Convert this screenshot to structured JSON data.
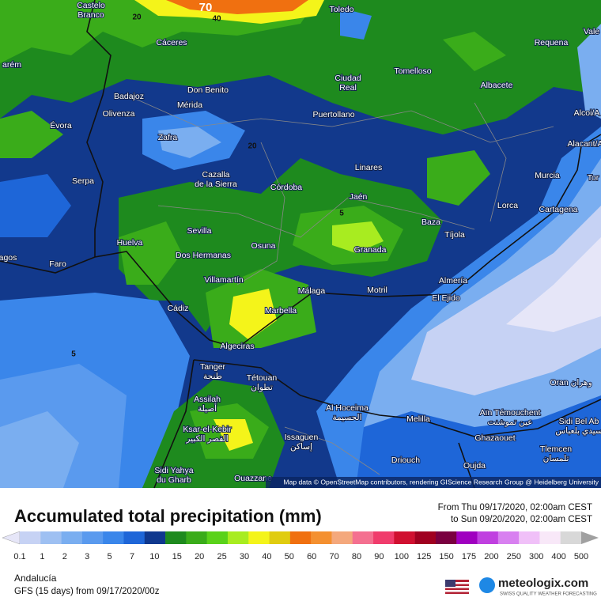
{
  "map": {
    "cities": [
      {
        "label": "Castelo",
        "label2": "Branco"
      },
      {
        "label": "Toledo"
      },
      {
        "label": "Cáceres"
      },
      {
        "label": "Requena"
      },
      {
        "label": "arém"
      },
      {
        "label": "Tomelloso"
      },
      {
        "label": "Ciudad",
        "label2": "Real"
      },
      {
        "label": "Albacete"
      },
      {
        "label": "Don Benito"
      },
      {
        "label": "Badajoz"
      },
      {
        "label": "Mérida"
      },
      {
        "label": "Puertollano"
      },
      {
        "label": "Alcoi/A"
      },
      {
        "label": "Évora"
      },
      {
        "label": "Olivenza"
      },
      {
        "label": "Zafra"
      },
      {
        "label": "Alacant/A"
      },
      {
        "label": "Linares"
      },
      {
        "label": "Cazalla",
        "label2": "de la Sierra"
      },
      {
        "label": "Murcia"
      },
      {
        "label": "Tor"
      },
      {
        "label": "Serpa"
      },
      {
        "label": "Córdoba"
      },
      {
        "label": "Jaén"
      },
      {
        "label": "Lorca"
      },
      {
        "label": "Cartagena"
      },
      {
        "label": "Baza"
      },
      {
        "label": "Sevilla"
      },
      {
        "label": "Huelva"
      },
      {
        "label": "Tíjola"
      },
      {
        "label": "Osuna"
      },
      {
        "label": "Granada"
      },
      {
        "label": "Dos Hermanas"
      },
      {
        "label": "agos"
      },
      {
        "label": "Faro"
      },
      {
        "label": "Almería"
      },
      {
        "label": "Villamartín"
      },
      {
        "label": "Málaga"
      },
      {
        "label": "Motril"
      },
      {
        "label": "El Ejido"
      },
      {
        "label": "Marbella"
      },
      {
        "label": "Cádiz"
      },
      {
        "label": "Algeciras"
      },
      {
        "label": "Tanger",
        "label2": "طنجة"
      },
      {
        "label": "Tétouan",
        "label2": "تطوان"
      },
      {
        "label": "Assilah",
        "label2": "أصيلة"
      },
      {
        "label": "Al Hoceima",
        "label2": "الحسيمة"
      },
      {
        "label": "Oran وهران"
      },
      {
        "label": "Aïn Témouchent",
        "label2": "عين تموشنت"
      },
      {
        "label": "Sidi Bel Ab",
        "label2": "سيدي بلعباس"
      },
      {
        "label": "Melilla"
      },
      {
        "label": "Ksar-el-Kebir",
        "label2": "القصر الكبير"
      },
      {
        "label": "Issaguen",
        "label2": "إساكن"
      },
      {
        "label": "Ghazaouet"
      },
      {
        "label": "Tlemcen",
        "label2": "تلمسان"
      },
      {
        "label": "Sidi Yahya",
        "label2": "du Gharb"
      },
      {
        "label": "Driouch"
      },
      {
        "label": "Oujda"
      },
      {
        "label": "Ouazzane"
      },
      {
        "label": "Vale"
      }
    ],
    "contour_labels": [
      70,
      40,
      20,
      5,
      20,
      5
    ],
    "attribution": "Map data © OpenStreetMap contributors, rendering GIScience Research Group @ Heidelberg University"
  },
  "legend": {
    "title": "Accumulated total precipitation (mm)",
    "period_from": "From Thu 09/17/2020, 02:00am CEST",
    "period_to": "to Sun 09/20/2020, 02:00am CEST",
    "ticks": [
      0.1,
      1,
      2,
      3,
      5,
      7,
      10,
      15,
      20,
      25,
      30,
      40,
      50,
      60,
      70,
      80,
      90,
      100,
      125,
      150,
      175,
      200,
      250,
      300,
      400,
      500
    ],
    "colors": [
      "#e6e6f8",
      "#c6d2f4",
      "#9ec0f2",
      "#7aaef0",
      "#5a9aee",
      "#3a86ea",
      "#1e66d8",
      "#10388e",
      "#1e8a1e",
      "#3aac1a",
      "#5ad21a",
      "#a8ec20",
      "#f4f41a",
      "#e0cc10",
      "#f07010",
      "#f49030",
      "#f4a87c",
      "#f47090",
      "#f03c6c",
      "#d01030",
      "#a00020",
      "#7a0040",
      "#a000c0",
      "#c040e0",
      "#d880f0",
      "#f0c0f8",
      "#f8e8f8",
      "#d8d8d8",
      "#a0a0a0"
    ],
    "region": "Andalucía",
    "model": "GFS (15 days) from 09/17/2020/00z",
    "brand": "meteologix.com",
    "tagline": "SWISS QUALITY WEATHER FORECASTING"
  }
}
